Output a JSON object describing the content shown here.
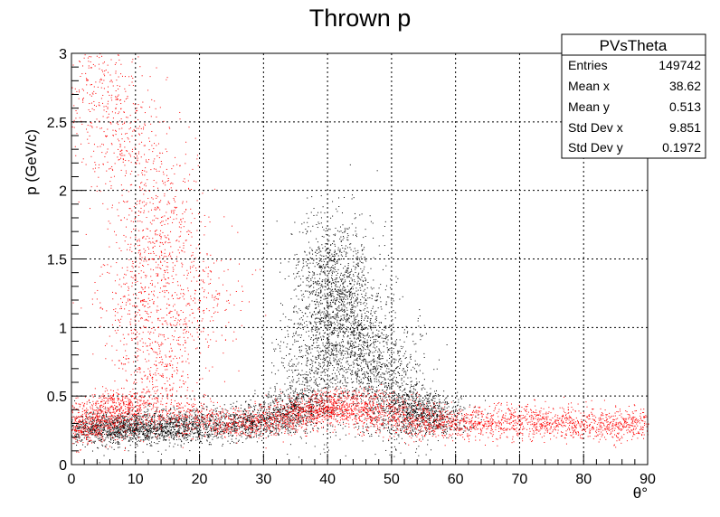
{
  "chart_data": {
    "type": "scatter",
    "title": "Thrown p",
    "xlabel": "θ°",
    "ylabel": "p (GeV/c)",
    "xlim": [
      0,
      90
    ],
    "ylim": [
      0,
      3
    ],
    "x_ticks": [
      0,
      10,
      20,
      30,
      40,
      50,
      60,
      70,
      80,
      90
    ],
    "y_ticks": [
      0,
      0.5,
      1,
      1.5,
      2,
      2.5,
      3
    ],
    "y_tick_labels": [
      "0",
      "0.5",
      "1",
      "1.5",
      "2",
      "2.5",
      "3"
    ],
    "grid": true,
    "series": [
      {
        "color": "#000000",
        "description": "dense band at p≈0.27 for θ 0–55 rising into a triangular lobe at θ 35–55 peaking near p≈1.6 at θ≈40",
        "points": [
          [
            2,
            0.27
          ],
          [
            5,
            0.26
          ],
          [
            8,
            0.28
          ],
          [
            10,
            0.27
          ],
          [
            13,
            0.27
          ],
          [
            16,
            0.28
          ],
          [
            20,
            0.28
          ],
          [
            24,
            0.29
          ],
          [
            28,
            0.31
          ],
          [
            32,
            0.34
          ],
          [
            35,
            0.42
          ],
          [
            37,
            0.55
          ],
          [
            38,
            0.75
          ],
          [
            39,
            1.05
          ],
          [
            40,
            1.35
          ],
          [
            41,
            1.5
          ],
          [
            42,
            1.25
          ],
          [
            43,
            1.1
          ],
          [
            44,
            0.95
          ],
          [
            45,
            0.85
          ],
          [
            47,
            0.7
          ],
          [
            49,
            0.6
          ],
          [
            51,
            0.52
          ],
          [
            53,
            0.45
          ],
          [
            55,
            0.38
          ],
          [
            56,
            0.3
          ]
        ]
      },
      {
        "color": "#ff0000",
        "description": "broad band p≈0.2–0.6 across θ 0–90 with a vertical streak at θ≈10–14 up to p≈1.7 and scattered points to p=3 at low θ",
        "points": [
          [
            1,
            0.25
          ],
          [
            3,
            0.3
          ],
          [
            5,
            0.35
          ],
          [
            7,
            0.4
          ],
          [
            9,
            0.45
          ],
          [
            11,
            1.2
          ],
          [
            12,
            1.5
          ],
          [
            13,
            0.9
          ],
          [
            14,
            0.65
          ],
          [
            18,
            0.35
          ],
          [
            25,
            0.3
          ],
          [
            30,
            0.32
          ],
          [
            35,
            0.35
          ],
          [
            38,
            0.4
          ],
          [
            40,
            0.42
          ],
          [
            43,
            0.4
          ],
          [
            46,
            0.45
          ],
          [
            50,
            0.35
          ],
          [
            55,
            0.3
          ],
          [
            60,
            0.3
          ],
          [
            65,
            0.32
          ],
          [
            70,
            0.32
          ],
          [
            75,
            0.3
          ],
          [
            80,
            0.3
          ],
          [
            85,
            0.3
          ],
          [
            90,
            0.3
          ],
          [
            3,
            2.9
          ],
          [
            6,
            2.5
          ],
          [
            10,
            2.2
          ],
          [
            15,
            1.8
          ],
          [
            20,
            1.2
          ]
        ]
      }
    ],
    "stats_box": {
      "name": "PVsTheta",
      "rows": [
        {
          "label": "Entries",
          "value": "149742"
        },
        {
          "label": "Mean x",
          "value": "38.62"
        },
        {
          "label": "Mean y",
          "value": "0.513"
        },
        {
          "label": "Std Dev x",
          "value": "9.851"
        },
        {
          "label": "Std Dev y",
          "value": "0.1972"
        }
      ]
    }
  }
}
